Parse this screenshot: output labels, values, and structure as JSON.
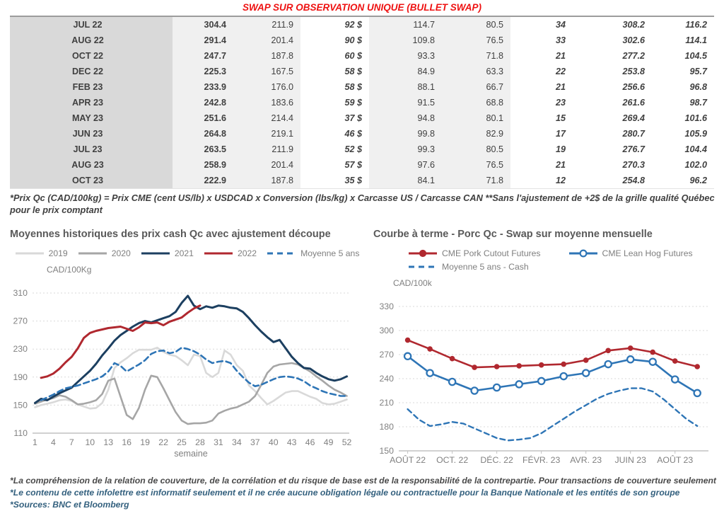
{
  "title": "SWAP SUR OBSERVATION UNIQUE (BULLET SWAP)",
  "colors": {
    "title_red": "#ee1111",
    "green": "#00b050",
    "blue": "#4472c4",
    "footer_blue": "#33607e",
    "navy": "#1c3f60",
    "dark_red": "#b0282f",
    "steel_blue": "#2e75b6",
    "gray_2019": "#d9d9d9",
    "gray_2020": "#a6a6a6"
  },
  "table": {
    "rows": [
      [
        "JUL 22",
        "304.4",
        "211.9",
        "92 $",
        "114.7",
        "80.5",
        "34",
        "308.2",
        "116.2"
      ],
      [
        "AUG 22",
        "291.4",
        "201.4",
        "90 $",
        "109.8",
        "76.5",
        "33",
        "302.6",
        "114.1"
      ],
      [
        "OCT 22",
        "247.7",
        "187.8",
        "60 $",
        "93.3",
        "71.8",
        "21",
        "277.2",
        "104.5"
      ],
      [
        "DEC 22",
        "225.3",
        "167.5",
        "58 $",
        "84.9",
        "63.3",
        "22",
        "253.8",
        "95.7"
      ],
      [
        "FEB 23",
        "233.9",
        "176.0",
        "58 $",
        "88.1",
        "66.7",
        "21",
        "256.6",
        "96.8"
      ],
      [
        "APR 23",
        "242.8",
        "183.6",
        "59 $",
        "91.5",
        "68.8",
        "23",
        "261.6",
        "98.7"
      ],
      [
        "MAY 23",
        "251.6",
        "214.4",
        "37 $",
        "94.8",
        "80.1",
        "15",
        "269.4",
        "101.6"
      ],
      [
        "JUN 23",
        "264.8",
        "219.1",
        "46 $",
        "99.8",
        "82.9",
        "17",
        "280.7",
        "105.9"
      ],
      [
        "JUL 23",
        "263.5",
        "211.9",
        "52 $",
        "99.3",
        "80.5",
        "19",
        "276.7",
        "104.4"
      ],
      [
        "AUG 23",
        "258.9",
        "201.4",
        "57 $",
        "97.6",
        "76.5",
        "21",
        "270.3",
        "102.0"
      ],
      [
        "OCT 23",
        "222.9",
        "187.8",
        "35 $",
        "84.1",
        "71.8",
        "12",
        "254.8",
        "96.2"
      ]
    ]
  },
  "table_note": "*Prix Qc (CAD/100kg) = Prix CME (cent US/lb) x USDCAD x Conversion (lbs/kg) x Carcasse US / Carcasse CAN **Sans l'ajustement de +2$ de la grille qualité Québec pour le prix comptant",
  "chart_data": [
    {
      "type": "line",
      "title": "Moyennes historiques des prix cash Qc avec ajustement découpe",
      "ylabel": "CAD/100Kg",
      "xlabel": "semaine",
      "ylim": [
        110,
        310
      ],
      "yticks": [
        110,
        150,
        190,
        230,
        270,
        310
      ],
      "xlim": [
        0.6,
        52.4
      ],
      "xticks": [
        1,
        4,
        7,
        10,
        13,
        16,
        19,
        22,
        25,
        28,
        31,
        34,
        37,
        40,
        43,
        46,
        49,
        52
      ],
      "grid": "dashed",
      "legend_position": "top",
      "series": [
        {
          "name": "2019",
          "color": "#d9d9d9",
          "width": 2.6,
          "x_start": 1,
          "values": [
            147,
            150,
            152,
            154,
            157,
            158,
            156,
            151,
            148,
            145,
            146,
            153,
            172,
            203,
            211,
            217,
            224,
            229,
            229,
            229,
            232,
            226,
            222,
            220,
            214,
            207,
            222,
            220,
            196,
            190,
            196,
            228,
            222,
            207,
            199,
            178,
            170,
            160,
            151,
            156,
            162,
            168,
            170,
            170,
            166,
            162,
            159,
            153,
            151,
            152,
            155,
            158
          ]
        },
        {
          "name": "2020",
          "color": "#a6a6a6",
          "width": 2.6,
          "x_start": 1,
          "values": [
            152,
            155,
            158,
            160,
            164,
            162,
            157,
            151,
            152,
            154,
            157,
            166,
            185,
            188,
            162,
            136,
            130,
            146,
            172,
            192,
            190,
            174,
            157,
            140,
            128,
            123,
            124,
            124,
            125,
            128,
            138,
            142,
            145,
            147,
            151,
            155,
            163,
            179,
            196,
            205,
            208,
            209,
            210,
            208,
            203,
            198,
            191,
            185,
            178,
            172,
            168,
            163
          ]
        },
        {
          "name": "2021",
          "color": "#1c3f60",
          "width": 3,
          "x_start": 1,
          "values": [
            153,
            159,
            157,
            162,
            167,
            171,
            175,
            183,
            191,
            199,
            209,
            221,
            231,
            242,
            250,
            256,
            262,
            267,
            270,
            268,
            271,
            274,
            277,
            283,
            296,
            306,
            292,
            287,
            291,
            289,
            292,
            291,
            289,
            288,
            283,
            274,
            264,
            255,
            247,
            240,
            243,
            231,
            219,
            210,
            203,
            202,
            196,
            191,
            187,
            185,
            187,
            191
          ]
        },
        {
          "name": "2022",
          "color": "#b0282f",
          "width": 3,
          "x_start": 2,
          "values": [
            189,
            191,
            195,
            202,
            211,
            219,
            231,
            246,
            253,
            256,
            258,
            260,
            261,
            262,
            259,
            256,
            261,
            268,
            267,
            268,
            264,
            269,
            272,
            275,
            282,
            288,
            292
          ]
        },
        {
          "name": "Moyenne 5 ans",
          "color": "#2e75b6",
          "width": 2.6,
          "dash": "8 5",
          "x_start": 2,
          "values": [
            157,
            161,
            165,
            170,
            174,
            176,
            178,
            181,
            184,
            187,
            191,
            198,
            210,
            206,
            198,
            203,
            208,
            214,
            223,
            227,
            228,
            224,
            226,
            232,
            230,
            227,
            222,
            215,
            210,
            212,
            213,
            210,
            199,
            190,
            182,
            177,
            179,
            183,
            187,
            190,
            191,
            190,
            188,
            184,
            178,
            174,
            170,
            167,
            165,
            163,
            163
          ]
        }
      ]
    },
    {
      "type": "line",
      "title": "Courbe à terme - Porc Qc - Swap sur moyenne mensuelle",
      "ylabel": "CAD/100k",
      "ylim": [
        150,
        330
      ],
      "yticks": [
        150,
        180,
        210,
        240,
        270,
        300,
        330
      ],
      "xlim": [
        -0.4,
        13.5
      ],
      "xticks": [
        0,
        2,
        4,
        6,
        8,
        10,
        12
      ],
      "xtick_labels": [
        "AOÛT 22",
        "OCT. 22",
        "DÉC. 22",
        "FÉVR. 23",
        "AVR. 23",
        "JUIN 23",
        "AOÛT 23"
      ],
      "xtick_marks": true,
      "grid": "dashed",
      "legend_position": "top",
      "series": [
        {
          "name": "CME Pork Cutout Futures",
          "color": "#b0282f",
          "width": 2.6,
          "marker": "filled",
          "x_start": 0,
          "x_step": 1,
          "values": [
            288,
            277,
            265,
            254,
            255,
            256,
            257,
            258,
            263,
            275,
            278,
            273,
            262,
            255
          ]
        },
        {
          "name": "CME Lean Hog Futures",
          "color": "#2e75b6",
          "width": 2.6,
          "marker": "open",
          "x_start": 0,
          "x_step": 1,
          "values": [
            268,
            247,
            236,
            225,
            229,
            233,
            237,
            243,
            247,
            258,
            264,
            261,
            239,
            222
          ]
        },
        {
          "name": "Moyenne 5 ans - Cash",
          "color": "#2e75b6",
          "width": 2.4,
          "dash": "7 5",
          "x_start": 0,
          "x_step": 0.5,
          "values": [
            202,
            189,
            181,
            183,
            186,
            184,
            178,
            172,
            166,
            163,
            164,
            166,
            172,
            181,
            190,
            199,
            207,
            215,
            221,
            225,
            228,
            228,
            224,
            214,
            202,
            190,
            181
          ]
        }
      ]
    }
  ],
  "footer": {
    "line1": "*La compréhension de la relation de couverture, de la corrélation et du risque de base est de la responsabilité de la contrepartie. Pour transactions de couverture seulement",
    "line2": "*Le contenu de cette infolettre est informatif seulement et il ne crée aucune obligation légale ou contractuelle pour la Banque Nationale et les entités de son groupe",
    "line3": "*Sources: BNC et Bloomberg"
  }
}
